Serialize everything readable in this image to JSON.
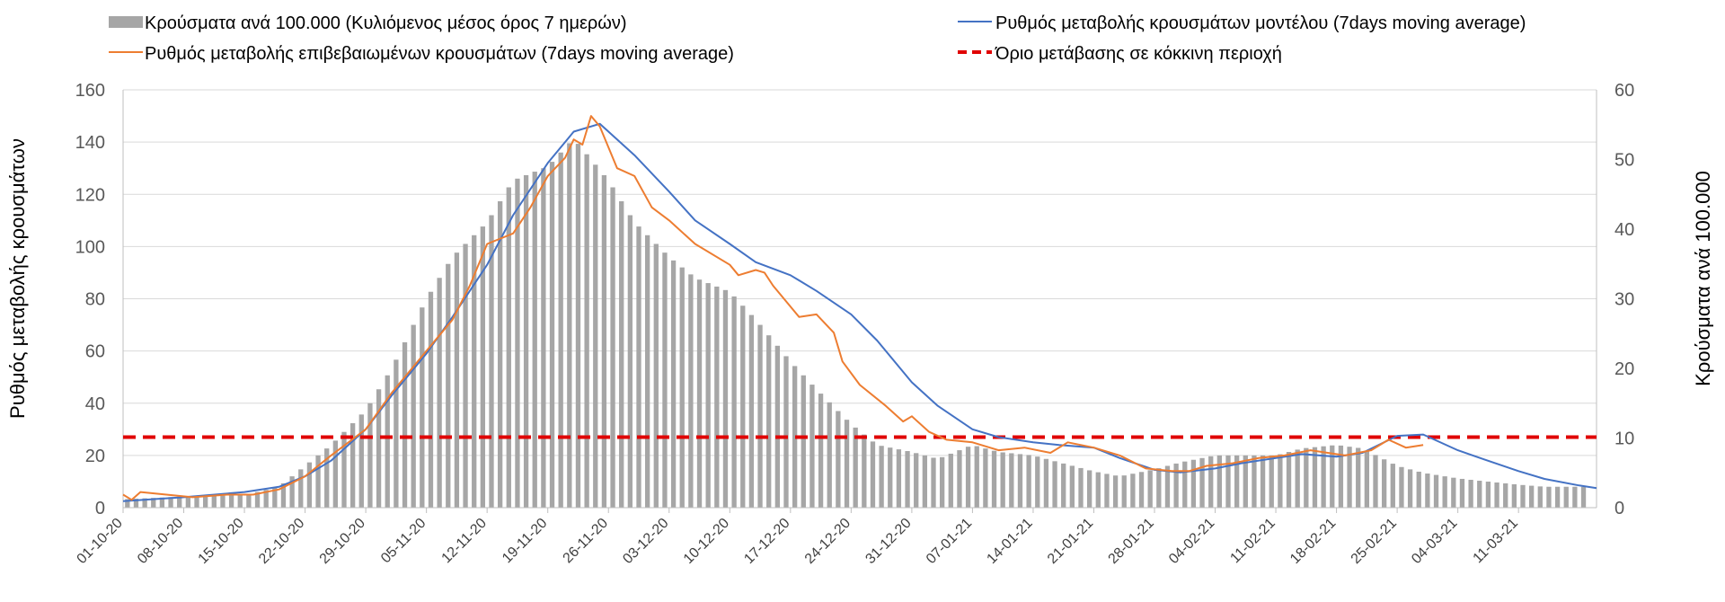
{
  "chart_data": {
    "type": "bar+line",
    "legend": [
      {
        "key": "bars",
        "label": "Κρούσματα ανά 100.000 (Κυλιόμενος μέσος όρος 7 ημερών)",
        "color": "#a6a6a6",
        "style": "bar"
      },
      {
        "key": "model",
        "label": "Ρυθμός μεταβολής κρουσμάτων μοντέλου (7days moving average)",
        "color": "#4472c4",
        "style": "line"
      },
      {
        "key": "confirmed",
        "label": "Ρυθμός μεταβολής επιβεβαιωμένων κρουσμάτων (7days moving average)",
        "color": "#ed7d31",
        "style": "line"
      },
      {
        "key": "threshold",
        "label": "Όριο μετάβασης σε κόκκινη περιοχή",
        "color": "#e00000",
        "style": "dashed"
      }
    ],
    "left_axis": {
      "title": "Ρυθμός μεταβολής κρουσμάτων",
      "min": 0,
      "max": 160,
      "ticks": [
        "0",
        "20",
        "40",
        "60",
        "80",
        "100",
        "120",
        "140",
        "160"
      ]
    },
    "right_axis": {
      "title": "Κρούσματα ανά 100.000",
      "min": 0,
      "max": 60,
      "ticks": [
        "0",
        "10",
        "20",
        "30",
        "40",
        "50",
        "60"
      ]
    },
    "x_labels": [
      "01-10-20",
      "08-10-20",
      "15-10-20",
      "22-10-20",
      "29-10-20",
      "05-11-20",
      "12-11-20",
      "19-11-20",
      "26-11-20",
      "03-12-20",
      "10-12-20",
      "17-12-20",
      "24-12-20",
      "31-12-20",
      "07-01-21",
      "14-01-21",
      "21-01-21",
      "28-01-21",
      "04-02-21",
      "11-02-21",
      "18-02-21",
      "25-02-21",
      "04-03-21",
      "11-03-21"
    ],
    "days": 170,
    "threshold_value": 27,
    "bars_anchors": [
      [
        0,
        1.2
      ],
      [
        7,
        1.6
      ],
      [
        14,
        1.8
      ],
      [
        18,
        3
      ],
      [
        21,
        6
      ],
      [
        24,
        9
      ],
      [
        28,
        14
      ],
      [
        31,
        20
      ],
      [
        35,
        30
      ],
      [
        38,
        36
      ],
      [
        42,
        41
      ],
      [
        45,
        47
      ],
      [
        49,
        49
      ],
      [
        52,
        53
      ],
      [
        56,
        47
      ],
      [
        59,
        41
      ],
      [
        63,
        36
      ],
      [
        66,
        33
      ],
      [
        70,
        31
      ],
      [
        73,
        27
      ],
      [
        77,
        21
      ],
      [
        80,
        17
      ],
      [
        84,
        12
      ],
      [
        87,
        9
      ],
      [
        91,
        8
      ],
      [
        94,
        7
      ],
      [
        98,
        9
      ],
      [
        101,
        8
      ],
      [
        105,
        7.5
      ],
      [
        108,
        6.5
      ],
      [
        112,
        5.2
      ],
      [
        115,
        4.5
      ],
      [
        119,
        5.5
      ],
      [
        122,
        6.5
      ],
      [
        126,
        7.5
      ],
      [
        129,
        7.5
      ],
      [
        133,
        7.5
      ],
      [
        136,
        8.5
      ],
      [
        140,
        9
      ],
      [
        143,
        8.5
      ],
      [
        147,
        6
      ],
      [
        150,
        5
      ],
      [
        154,
        4.2
      ],
      [
        157,
        3.8
      ],
      [
        161,
        3.3
      ],
      [
        164,
        3
      ]
    ],
    "model_anchors": [
      [
        0,
        2.5
      ],
      [
        7,
        4
      ],
      [
        14,
        6
      ],
      [
        18,
        8
      ],
      [
        21,
        12
      ],
      [
        24,
        18
      ],
      [
        28,
        30
      ],
      [
        31,
        43
      ],
      [
        35,
        59
      ],
      [
        38,
        73
      ],
      [
        42,
        93
      ],
      [
        45,
        112
      ],
      [
        49,
        132
      ],
      [
        52,
        144
      ],
      [
        55,
        147
      ],
      [
        59,
        135
      ],
      [
        63,
        121
      ],
      [
        66,
        110
      ],
      [
        70,
        101
      ],
      [
        73,
        94
      ],
      [
        77,
        89
      ],
      [
        80,
        83
      ],
      [
        84,
        74
      ],
      [
        87,
        64
      ],
      [
        91,
        48
      ],
      [
        94,
        39
      ],
      [
        98,
        30
      ],
      [
        101,
        27
      ],
      [
        105,
        25
      ],
      [
        108,
        24
      ],
      [
        112,
        23
      ],
      [
        115,
        19
      ],
      [
        119,
        14.5
      ],
      [
        122,
        13.5
      ],
      [
        126,
        15
      ],
      [
        129,
        17
      ],
      [
        133,
        19
      ],
      [
        136,
        20.5
      ],
      [
        140,
        19.5
      ],
      [
        143,
        21
      ],
      [
        147,
        27.5
      ],
      [
        150,
        28
      ],
      [
        154,
        22
      ],
      [
        157,
        18.5
      ],
      [
        161,
        14
      ],
      [
        164,
        11
      ],
      [
        168,
        8.5
      ],
      [
        170,
        7.5
      ]
    ],
    "confirmed_anchors": [
      [
        0,
        5
      ],
      [
        1,
        3
      ],
      [
        2,
        6
      ],
      [
        5,
        5
      ],
      [
        8,
        4
      ],
      [
        12,
        5
      ],
      [
        15,
        5
      ],
      [
        18,
        7
      ],
      [
        21,
        12
      ],
      [
        24,
        20
      ],
      [
        28,
        30
      ],
      [
        31,
        44
      ],
      [
        35,
        60
      ],
      [
        38,
        72
      ],
      [
        40,
        85
      ],
      [
        42,
        101
      ],
      [
        45,
        105
      ],
      [
        47,
        115
      ],
      [
        49,
        127
      ],
      [
        51,
        134
      ],
      [
        52,
        141
      ],
      [
        53,
        139
      ],
      [
        54,
        150
      ],
      [
        55,
        146
      ],
      [
        57,
        130
      ],
      [
        59,
        127
      ],
      [
        61,
        115
      ],
      [
        63,
        110
      ],
      [
        66,
        101
      ],
      [
        70,
        93
      ],
      [
        71,
        89
      ],
      [
        73,
        91
      ],
      [
        74,
        90
      ],
      [
        75,
        85
      ],
      [
        78,
        73
      ],
      [
        80,
        74
      ],
      [
        82,
        67
      ],
      [
        83,
        56
      ],
      [
        85,
        47
      ],
      [
        88,
        39
      ],
      [
        90,
        33
      ],
      [
        91,
        35
      ],
      [
        93,
        29
      ],
      [
        95,
        26
      ],
      [
        98,
        25
      ],
      [
        101,
        22
      ],
      [
        104,
        23
      ],
      [
        107,
        21
      ],
      [
        109,
        25
      ],
      [
        112,
        23
      ],
      [
        115,
        20
      ],
      [
        118,
        15
      ],
      [
        121,
        14
      ],
      [
        123,
        14
      ],
      [
        125,
        16
      ],
      [
        128,
        17
      ],
      [
        131,
        19
      ],
      [
        134,
        20
      ],
      [
        137,
        22
      ],
      [
        139,
        21
      ],
      [
        141,
        20
      ],
      [
        144,
        22
      ],
      [
        146,
        26
      ],
      [
        148,
        23
      ],
      [
        150,
        24
      ]
    ]
  }
}
